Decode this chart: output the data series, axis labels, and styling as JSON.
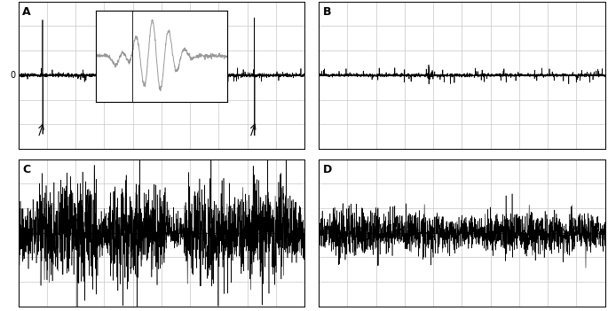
{
  "panel_labels": [
    "A",
    "B",
    "C",
    "D"
  ],
  "grid_color": "#c8c8c8",
  "bg_color": "#ffffff",
  "signal_color": "#000000",
  "inset_signal_color": "#999999",
  "n_samples": 2000,
  "seed": 7,
  "grid_nx": 10,
  "grid_ny": 6
}
